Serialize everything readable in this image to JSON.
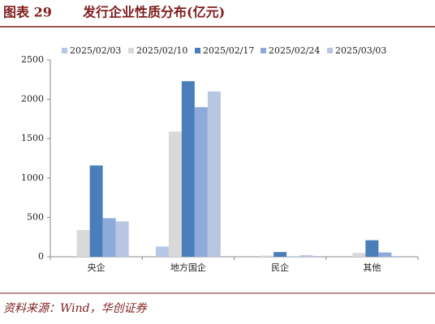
{
  "figure_label": "图表 29",
  "source": "资料来源：Wind，华创证券",
  "chart_data": {
    "type": "bar",
    "title": "发行企业性质分布(亿元)",
    "categories": [
      "央企",
      "地方国企",
      "民企",
      "其他"
    ],
    "series": [
      {
        "name": "2025/02/03",
        "color": "#b4c7e7",
        "values": [
          0,
          130,
          0,
          0
        ]
      },
      {
        "name": "2025/02/10",
        "color": "#d9d9d9",
        "values": [
          340,
          1590,
          15,
          50
        ]
      },
      {
        "name": "2025/02/17",
        "color": "#4a7ebb",
        "values": [
          1160,
          2230,
          60,
          210
        ]
      },
      {
        "name": "2025/02/24",
        "color": "#8eaadb",
        "values": [
          490,
          1900,
          5,
          55
        ]
      },
      {
        "name": "2025/03/03",
        "color": "#b9c6e2",
        "values": [
          450,
          2100,
          20,
          10
        ]
      }
    ],
    "ylim": [
      0,
      2500
    ],
    "yticks": [
      0,
      500,
      1000,
      1500,
      2000,
      2500
    ],
    "grid": false,
    "legend": "top"
  }
}
